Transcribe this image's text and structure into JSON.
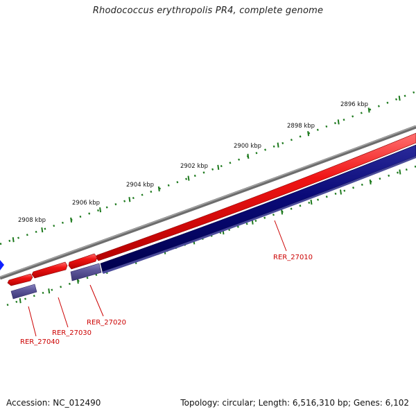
{
  "title": "Rhodococcus erythropolis PR4, complete genome",
  "footer": {
    "accession": "Accession: NC_012490",
    "summary": "Topology: circular; Length: 6,516,310 bp; Genes: 6,102"
  },
  "colors": {
    "backbone": "#7d7d7d",
    "forward_gene": "#ee1111",
    "reverse_gene": "#00006e",
    "reverse_gene_light": "#5b5496",
    "tick": "#1e7a1e",
    "label": "#cc0000",
    "offscreen_marker": "#1020ff"
  },
  "ruler": {
    "labels": [
      "2896 kbp",
      "2898 kbp",
      "2900 kbp",
      "2902 kbp",
      "2904 kbp",
      "2906 kbp",
      "2908 kbp"
    ]
  },
  "genes": [
    {
      "label": "RER_27010",
      "strand": "-",
      "tone": "dark"
    },
    {
      "label": "RER_27020",
      "strand": "-",
      "tone": "light"
    },
    {
      "label": "RER_27030",
      "strand": "+",
      "tone": "forward"
    },
    {
      "label": "RER_27040",
      "strand": "-",
      "tone": "light"
    }
  ],
  "forward_genes": [
    {
      "id": "forward-gene-long"
    },
    {
      "id": "forward-gene-b"
    },
    {
      "id": "forward-gene-c"
    },
    {
      "id": "forward-gene-d"
    }
  ]
}
